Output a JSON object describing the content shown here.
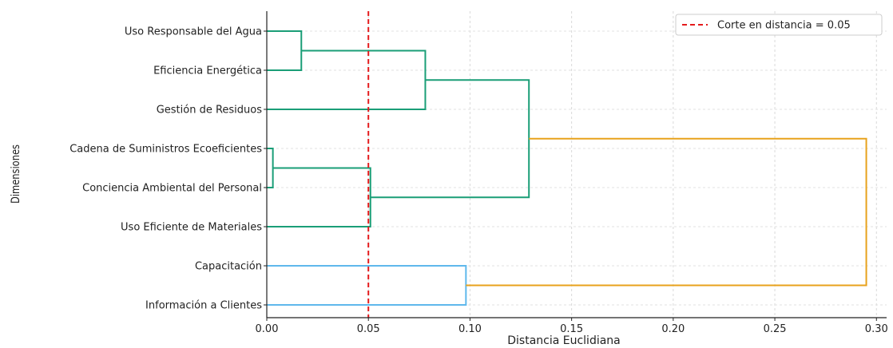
{
  "chart_data": {
    "type": "dendrogram",
    "orientation": "horizontal",
    "xlabel": "Distancia Euclidiana",
    "ylabel": "Dimensiones",
    "xlim": [
      0,
      0.305
    ],
    "xticks": [
      0.0,
      0.05,
      0.1,
      0.15,
      0.2,
      0.25,
      0.3
    ],
    "xtick_labels": [
      "0.00",
      "0.05",
      "0.10",
      "0.15",
      "0.20",
      "0.25",
      "0.30"
    ],
    "grid": true,
    "legend": {
      "placement": "top-right",
      "entries": [
        "Corte en distancia = 0.05"
      ]
    },
    "cut_line": {
      "x": 0.05,
      "color": "#e41a1c",
      "style": "dashed"
    },
    "leaves": [
      "Uso Responsable del Agua",
      "Eficiencia Energética",
      "Gestión de Residuos",
      "Cadena de Suministros Ecoeficientes",
      "Conciencia Ambiental del Personal",
      "Uso Eficiente de Materiales",
      "Capacitación",
      "Información a Clientes"
    ],
    "colors": {
      "green": "#1a9e77",
      "blue": "#5fb8ec",
      "orange": "#e8a21c"
    },
    "merges": [
      {
        "children": [
          0,
          1
        ],
        "distance": 0.017,
        "color": "green"
      },
      {
        "children": [
          3,
          4
        ],
        "distance": 0.003,
        "color": "green"
      },
      {
        "children": [
          "m0",
          2
        ],
        "distance": 0.078,
        "color": "green"
      },
      {
        "children": [
          "m1",
          5
        ],
        "distance": 0.051,
        "color": "green"
      },
      {
        "children": [
          "m2",
          "m3"
        ],
        "distance": 0.129,
        "color": "green"
      },
      {
        "children": [
          6,
          7
        ],
        "distance": 0.098,
        "color": "blue"
      },
      {
        "children": [
          "m4",
          "m5"
        ],
        "distance": 0.295,
        "color": "orange"
      }
    ]
  }
}
